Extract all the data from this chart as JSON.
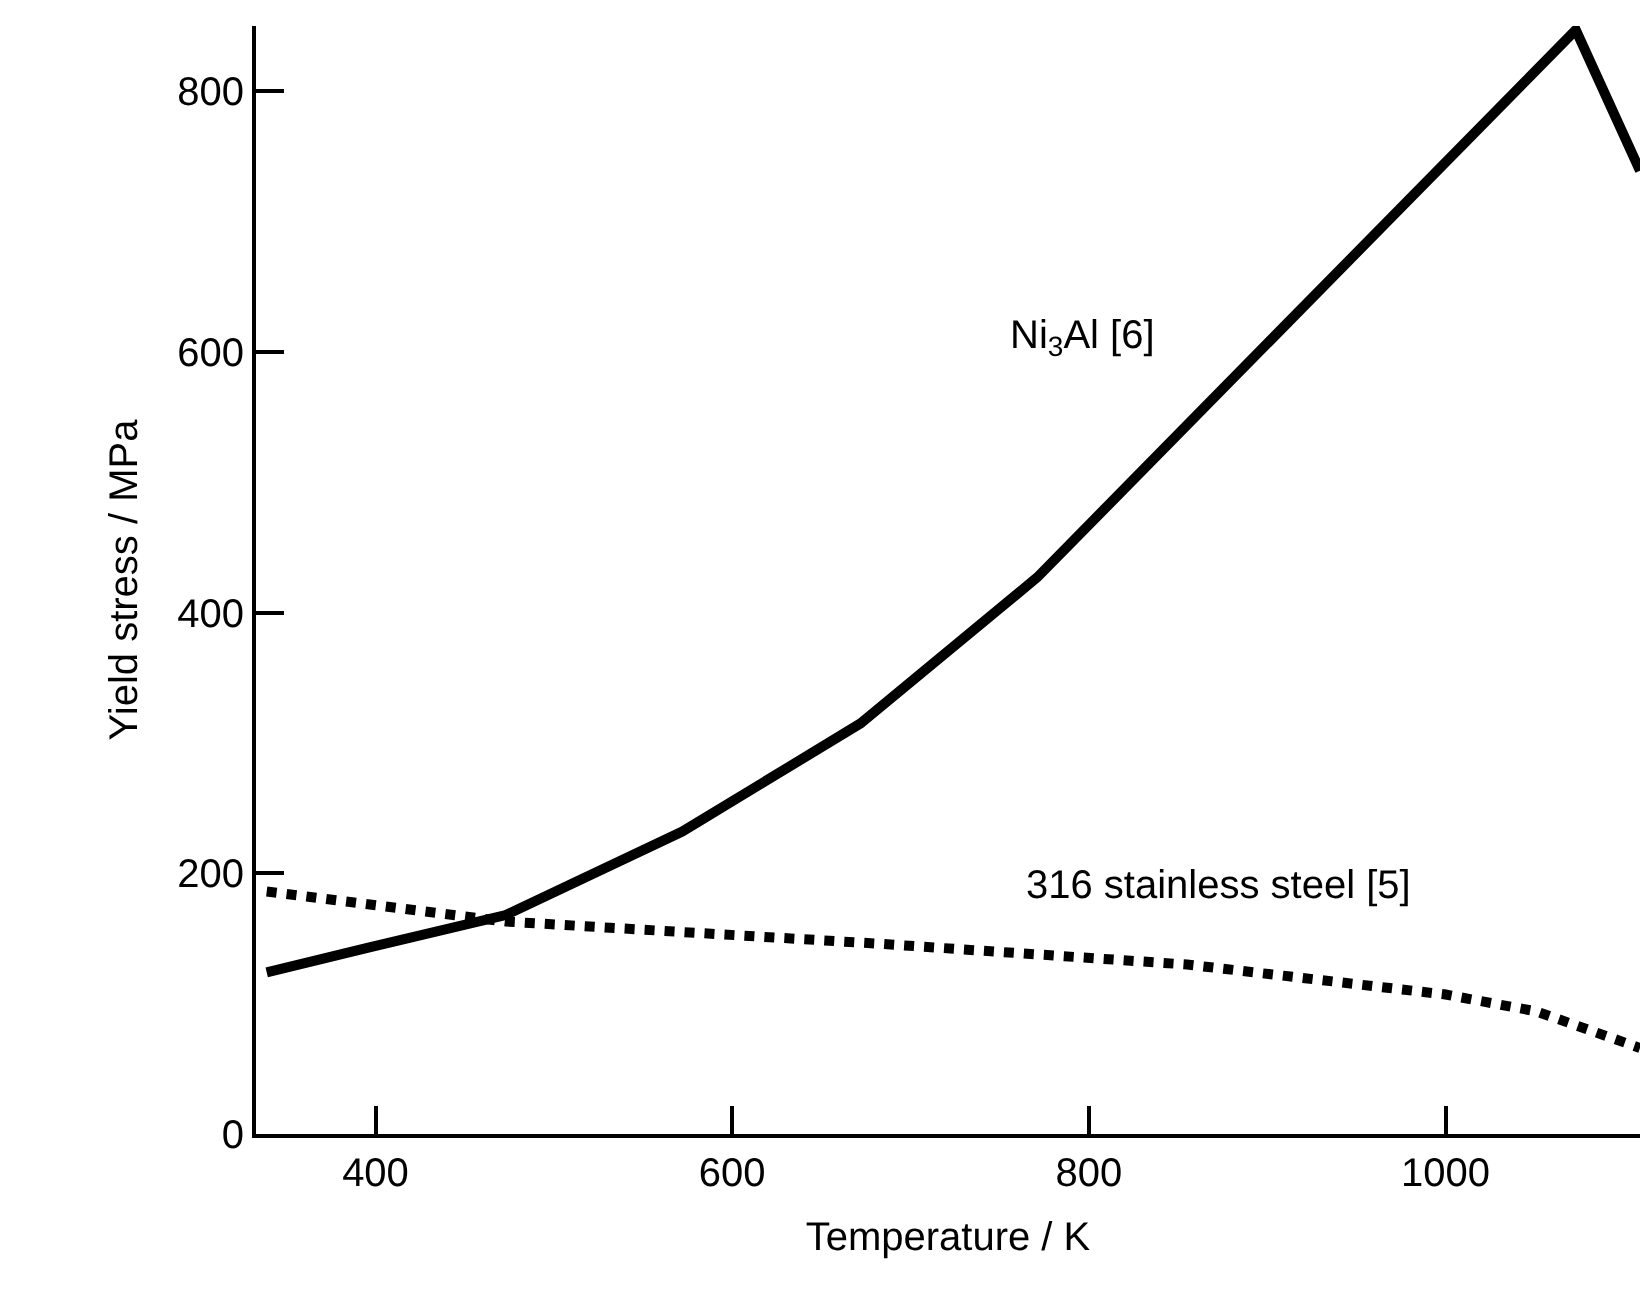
{
  "chart_data": {
    "type": "line",
    "xlabel": "Temperature / K",
    "ylabel": "Yield stress / MPa",
    "xlim": [
      333,
      1109
    ],
    "ylim": [
      0,
      850
    ],
    "xticks": [
      400,
      600,
      800,
      1000
    ],
    "yticks": [
      0,
      200,
      400,
      600,
      800
    ],
    "grid": false,
    "legend": false,
    "marker": "none",
    "series": [
      {
        "name": "Ni$_{3}$Al [6]",
        "color": "#000000",
        "line_style": "solid",
        "x": [
          339,
          396,
          473,
          572,
          672,
          771,
          1073,
          1109
        ],
        "values": [
          124,
          143,
          168,
          232,
          315,
          427,
          847,
          739
        ]
      },
      {
        "name": "316 stainless steel [5]",
        "color": "#000000",
        "line_style": "dotted",
        "x": [
          339,
          473,
          682,
          855,
          1000,
          1051,
          1109
        ],
        "values": [
          186,
          163,
          146,
          130,
          107,
          94,
          66
        ]
      }
    ]
  }
}
